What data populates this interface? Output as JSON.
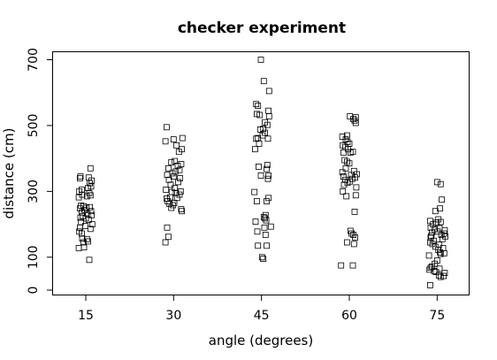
{
  "chart_data": {
    "type": "scatter",
    "title": "checker experiment",
    "xlabel": "angle (degrees)",
    "ylabel": "distance (cm)",
    "x_categories": [
      15,
      30,
      45,
      60,
      75
    ],
    "x_ticks": [
      "15",
      "30",
      "45",
      "60",
      "75"
    ],
    "y_ticks": [
      0,
      100,
      300,
      500,
      700
    ],
    "y_tick_labels": [
      "0",
      "100",
      "300",
      "500",
      "700"
    ],
    "ylim": [
      -20,
      730
    ],
    "grid": false,
    "legend": "none",
    "marker": "open-square",
    "colors": {
      "marker": "#000000",
      "frame": "#000000",
      "background": "#ffffff"
    },
    "points": [
      {
        "x": 13.8,
        "y": 128
      },
      {
        "x": 14.7,
        "y": 130
      },
      {
        "x": 15.6,
        "y": 92
      },
      {
        "x": 14.6,
        "y": 145
      },
      {
        "x": 15.4,
        "y": 148
      },
      {
        "x": 14.4,
        "y": 157
      },
      {
        "x": 15.2,
        "y": 155
      },
      {
        "x": 14.3,
        "y": 172
      },
      {
        "x": 13.9,
        "y": 178
      },
      {
        "x": 15.8,
        "y": 186
      },
      {
        "x": 14.0,
        "y": 190
      },
      {
        "x": 14.9,
        "y": 195
      },
      {
        "x": 16.1,
        "y": 200
      },
      {
        "x": 14.2,
        "y": 207
      },
      {
        "x": 15.5,
        "y": 214
      },
      {
        "x": 14.1,
        "y": 220
      },
      {
        "x": 15.0,
        "y": 218
      },
      {
        "x": 14.5,
        "y": 225
      },
      {
        "x": 16.0,
        "y": 228
      },
      {
        "x": 15.3,
        "y": 231
      },
      {
        "x": 14.3,
        "y": 236
      },
      {
        "x": 15.9,
        "y": 240
      },
      {
        "x": 14.8,
        "y": 243
      },
      {
        "x": 14.0,
        "y": 248
      },
      {
        "x": 15.1,
        "y": 250
      },
      {
        "x": 15.7,
        "y": 252
      },
      {
        "x": 14.6,
        "y": 255
      },
      {
        "x": 14.2,
        "y": 257
      },
      {
        "x": 13.8,
        "y": 282
      },
      {
        "x": 15.2,
        "y": 285
      },
      {
        "x": 15.8,
        "y": 288
      },
      {
        "x": 14.4,
        "y": 290
      },
      {
        "x": 15.6,
        "y": 295
      },
      {
        "x": 13.9,
        "y": 300
      },
      {
        "x": 14.3,
        "y": 305
      },
      {
        "x": 15.4,
        "y": 310
      },
      {
        "x": 15.9,
        "y": 315
      },
      {
        "x": 15.7,
        "y": 325
      },
      {
        "x": 16.0,
        "y": 333
      },
      {
        "x": 14.0,
        "y": 340
      },
      {
        "x": 15.5,
        "y": 342
      },
      {
        "x": 14.1,
        "y": 345
      },
      {
        "x": 15.8,
        "y": 370
      },
      {
        "x": 28.6,
        "y": 145
      },
      {
        "x": 29.1,
        "y": 162
      },
      {
        "x": 28.9,
        "y": 190
      },
      {
        "x": 31.4,
        "y": 240
      },
      {
        "x": 31.3,
        "y": 246
      },
      {
        "x": 29.6,
        "y": 250
      },
      {
        "x": 29.9,
        "y": 258
      },
      {
        "x": 29.3,
        "y": 262
      },
      {
        "x": 30.1,
        "y": 265
      },
      {
        "x": 29.0,
        "y": 270
      },
      {
        "x": 28.8,
        "y": 278
      },
      {
        "x": 30.6,
        "y": 280
      },
      {
        "x": 29.4,
        "y": 282
      },
      {
        "x": 31.0,
        "y": 290
      },
      {
        "x": 30.4,
        "y": 295
      },
      {
        "x": 29.7,
        "y": 298
      },
      {
        "x": 31.2,
        "y": 300
      },
      {
        "x": 28.7,
        "y": 305
      },
      {
        "x": 30.2,
        "y": 310
      },
      {
        "x": 29.5,
        "y": 320
      },
      {
        "x": 30.8,
        "y": 328
      },
      {
        "x": 29.2,
        "y": 335
      },
      {
        "x": 31.1,
        "y": 340
      },
      {
        "x": 30.0,
        "y": 345
      },
      {
        "x": 28.9,
        "y": 350
      },
      {
        "x": 29.8,
        "y": 355
      },
      {
        "x": 30.3,
        "y": 360
      },
      {
        "x": 31.0,
        "y": 365
      },
      {
        "x": 29.1,
        "y": 370
      },
      {
        "x": 30.7,
        "y": 378
      },
      {
        "x": 31.3,
        "y": 383
      },
      {
        "x": 29.6,
        "y": 388
      },
      {
        "x": 30.2,
        "y": 392
      },
      {
        "x": 30.9,
        "y": 420
      },
      {
        "x": 31.4,
        "y": 428
      },
      {
        "x": 30.5,
        "y": 440
      },
      {
        "x": 28.6,
        "y": 452
      },
      {
        "x": 30.0,
        "y": 458
      },
      {
        "x": 31.5,
        "y": 462
      },
      {
        "x": 28.8,
        "y": 495
      },
      {
        "x": 45.3,
        "y": 95
      },
      {
        "x": 45.1,
        "y": 100
      },
      {
        "x": 44.4,
        "y": 135
      },
      {
        "x": 45.9,
        "y": 135
      },
      {
        "x": 45.7,
        "y": 168
      },
      {
        "x": 44.3,
        "y": 178
      },
      {
        "x": 45.5,
        "y": 190
      },
      {
        "x": 46.6,
        "y": 193
      },
      {
        "x": 44.0,
        "y": 208
      },
      {
        "x": 45.8,
        "y": 212
      },
      {
        "x": 45.6,
        "y": 218
      },
      {
        "x": 45.4,
        "y": 222
      },
      {
        "x": 45.7,
        "y": 228
      },
      {
        "x": 44.2,
        "y": 270
      },
      {
        "x": 45.9,
        "y": 270
      },
      {
        "x": 46.2,
        "y": 280
      },
      {
        "x": 43.8,
        "y": 298
      },
      {
        "x": 46.1,
        "y": 338
      },
      {
        "x": 46.2,
        "y": 348
      },
      {
        "x": 44.9,
        "y": 348
      },
      {
        "x": 45.9,
        "y": 368
      },
      {
        "x": 44.5,
        "y": 375
      },
      {
        "x": 46.0,
        "y": 380
      },
      {
        "x": 43.9,
        "y": 428
      },
      {
        "x": 44.6,
        "y": 445
      },
      {
        "x": 44.1,
        "y": 460
      },
      {
        "x": 44.4,
        "y": 462
      },
      {
        "x": 45.2,
        "y": 470
      },
      {
        "x": 45.6,
        "y": 478
      },
      {
        "x": 46.1,
        "y": 460
      },
      {
        "x": 44.8,
        "y": 488
      },
      {
        "x": 45.3,
        "y": 490
      },
      {
        "x": 46.0,
        "y": 502
      },
      {
        "x": 45.6,
        "y": 510
      },
      {
        "x": 46.3,
        "y": 528
      },
      {
        "x": 44.2,
        "y": 535
      },
      {
        "x": 44.7,
        "y": 532
      },
      {
        "x": 46.2,
        "y": 545
      },
      {
        "x": 44.1,
        "y": 565
      },
      {
        "x": 44.4,
        "y": 560
      },
      {
        "x": 46.3,
        "y": 605
      },
      {
        "x": 45.4,
        "y": 635
      },
      {
        "x": 44.9,
        "y": 700
      },
      {
        "x": 58.6,
        "y": 75
      },
      {
        "x": 60.6,
        "y": 75
      },
      {
        "x": 60.8,
        "y": 140
      },
      {
        "x": 59.6,
        "y": 145
      },
      {
        "x": 61.0,
        "y": 160
      },
      {
        "x": 60.7,
        "y": 168
      },
      {
        "x": 60.4,
        "y": 172
      },
      {
        "x": 60.2,
        "y": 180
      },
      {
        "x": 60.9,
        "y": 238
      },
      {
        "x": 59.5,
        "y": 285
      },
      {
        "x": 61.1,
        "y": 288
      },
      {
        "x": 58.9,
        "y": 300
      },
      {
        "x": 61.2,
        "y": 312
      },
      {
        "x": 59.1,
        "y": 320
      },
      {
        "x": 59.7,
        "y": 326
      },
      {
        "x": 60.1,
        "y": 330
      },
      {
        "x": 59.3,
        "y": 335
      },
      {
        "x": 60.5,
        "y": 338
      },
      {
        "x": 61.0,
        "y": 342
      },
      {
        "x": 59.0,
        "y": 345
      },
      {
        "x": 60.3,
        "y": 350
      },
      {
        "x": 61.3,
        "y": 352
      },
      {
        "x": 58.8,
        "y": 358
      },
      {
        "x": 60.8,
        "y": 362
      },
      {
        "x": 59.4,
        "y": 370
      },
      {
        "x": 60.0,
        "y": 385
      },
      {
        "x": 59.6,
        "y": 390
      },
      {
        "x": 59.2,
        "y": 395
      },
      {
        "x": 60.2,
        "y": 418
      },
      {
        "x": 59.0,
        "y": 418
      },
      {
        "x": 60.6,
        "y": 420
      },
      {
        "x": 59.8,
        "y": 428
      },
      {
        "x": 59.3,
        "y": 435
      },
      {
        "x": 58.9,
        "y": 440
      },
      {
        "x": 60.0,
        "y": 445
      },
      {
        "x": 59.7,
        "y": 450
      },
      {
        "x": 59.4,
        "y": 458
      },
      {
        "x": 58.8,
        "y": 466
      },
      {
        "x": 59.6,
        "y": 470
      },
      {
        "x": 61.1,
        "y": 508
      },
      {
        "x": 60.9,
        "y": 515
      },
      {
        "x": 60.7,
        "y": 520
      },
      {
        "x": 61.1,
        "y": 525
      },
      {
        "x": 60.1,
        "y": 528
      },
      {
        "x": 73.8,
        "y": 15
      },
      {
        "x": 75.6,
        "y": 40
      },
      {
        "x": 76.1,
        "y": 43
      },
      {
        "x": 75.3,
        "y": 45
      },
      {
        "x": 76.3,
        "y": 52
      },
      {
        "x": 74.8,
        "y": 55
      },
      {
        "x": 74.5,
        "y": 58
      },
      {
        "x": 73.7,
        "y": 62
      },
      {
        "x": 75.4,
        "y": 65
      },
      {
        "x": 73.9,
        "y": 68
      },
      {
        "x": 74.1,
        "y": 72
      },
      {
        "x": 74.6,
        "y": 80
      },
      {
        "x": 75.0,
        "y": 90
      },
      {
        "x": 73.6,
        "y": 105
      },
      {
        "x": 75.6,
        "y": 110
      },
      {
        "x": 76.2,
        "y": 112
      },
      {
        "x": 75.5,
        "y": 115
      },
      {
        "x": 75.2,
        "y": 122
      },
      {
        "x": 76.0,
        "y": 128
      },
      {
        "x": 74.7,
        "y": 132
      },
      {
        "x": 75.3,
        "y": 138
      },
      {
        "x": 74.2,
        "y": 140
      },
      {
        "x": 73.8,
        "y": 145
      },
      {
        "x": 74.4,
        "y": 150
      },
      {
        "x": 75.9,
        "y": 155
      },
      {
        "x": 73.9,
        "y": 160
      },
      {
        "x": 76.4,
        "y": 163
      },
      {
        "x": 74.0,
        "y": 165
      },
      {
        "x": 75.7,
        "y": 168
      },
      {
        "x": 76.2,
        "y": 172
      },
      {
        "x": 74.1,
        "y": 175
      },
      {
        "x": 75.1,
        "y": 178
      },
      {
        "x": 76.3,
        "y": 182
      },
      {
        "x": 74.6,
        "y": 185
      },
      {
        "x": 75.4,
        "y": 188
      },
      {
        "x": 73.9,
        "y": 190
      },
      {
        "x": 74.3,
        "y": 200
      },
      {
        "x": 74.9,
        "y": 205
      },
      {
        "x": 75.6,
        "y": 207
      },
      {
        "x": 73.8,
        "y": 210
      },
      {
        "x": 75.2,
        "y": 215
      },
      {
        "x": 74.7,
        "y": 240
      },
      {
        "x": 75.5,
        "y": 248
      },
      {
        "x": 75.8,
        "y": 275
      },
      {
        "x": 75.0,
        "y": 328
      },
      {
        "x": 75.6,
        "y": 322
      }
    ]
  }
}
